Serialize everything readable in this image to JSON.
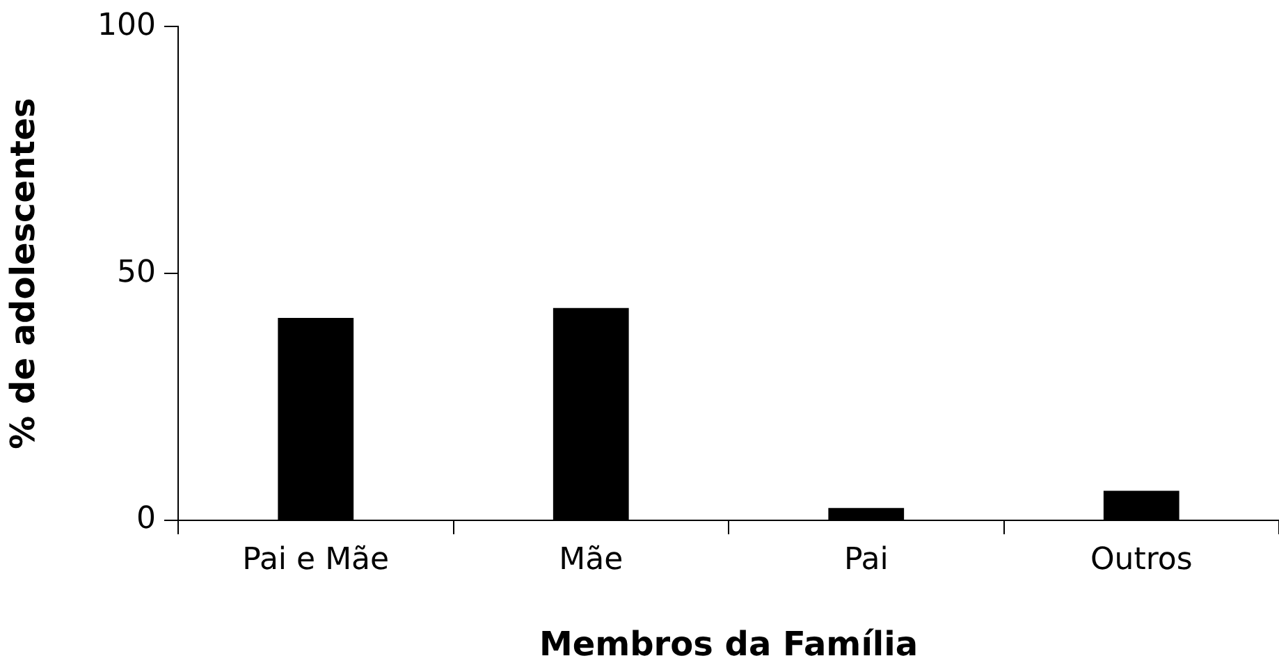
{
  "chart_data": {
    "type": "bar",
    "xlabel": "Membros da Família",
    "ylabel": "% de adolescentes",
    "categories": [
      "Pai e Mãe",
      "Mãe",
      "Pai",
      "Outros"
    ],
    "values": [
      41,
      43,
      2.5,
      6
    ],
    "color": "#000000",
    "ylim": [
      0,
      100
    ],
    "yticks": [
      0,
      50,
      100
    ],
    "grid": false,
    "legend": false
  }
}
